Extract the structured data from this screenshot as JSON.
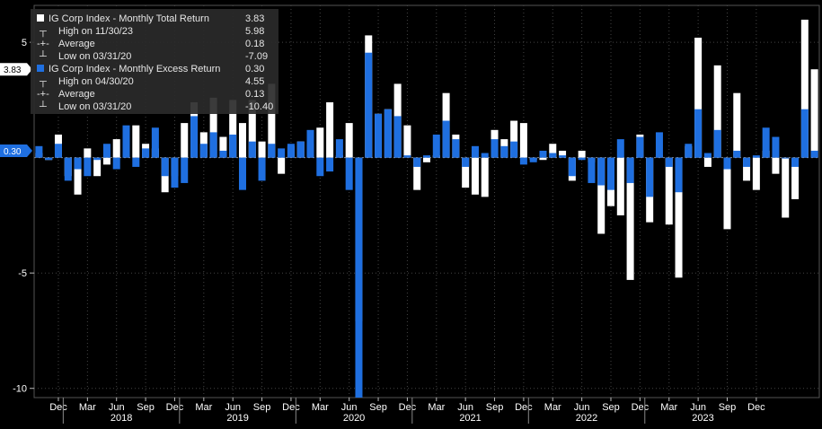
{
  "chart_data": {
    "type": "bar",
    "x_start": "2017-10",
    "x_end": "2023-12",
    "ylim": [
      -10.4,
      6.6
    ],
    "yticks": [
      5,
      -5,
      -10
    ],
    "y_tick_labels": [
      "5",
      "-5",
      "-10"
    ],
    "month_tick_labels": [
      "Dec",
      "Mar",
      "Jun",
      "Sep",
      "Dec",
      "Mar",
      "Jun",
      "Sep",
      "Dec",
      "Mar",
      "Jun",
      "Sep",
      "Dec",
      "Mar",
      "Jun",
      "Sep",
      "Dec",
      "Mar",
      "Jun",
      "Sep",
      "Dec",
      "Mar",
      "Jun",
      "Sep",
      "Dec"
    ],
    "year_labels": [
      "2018",
      "2019",
      "2020",
      "2021",
      "2022",
      "2023"
    ],
    "grid": true,
    "legend_position": "top-left",
    "colors": {
      "total": "#ffffff",
      "excess": "#1f6fe0",
      "background": "#000000",
      "grid": "#444444"
    },
    "series": [
      {
        "name": "IG Corp Index - Monthly Total Return",
        "color": "#ffffff",
        "last_value": "3.83",
        "stats": [
          {
            "label": "High on 11/30/23",
            "value": "5.98"
          },
          {
            "label": "Average",
            "value": "0.18"
          },
          {
            "label": "Low on 03/31/20",
            "value": "-7.09"
          }
        ],
        "values": [
          0.2,
          -0.1,
          1.0,
          -0.8,
          -1.6,
          0.4,
          -0.8,
          -0.3,
          0.8,
          0.1,
          1.4,
          0.6,
          0.4,
          -1.5,
          -0.8,
          1.5,
          2.4,
          1.1,
          2.6,
          0.9,
          2.5,
          1.5,
          2.5,
          0.7,
          3.2,
          -0.7,
          0.5,
          0.7,
          0.6,
          1.3,
          2.4,
          0.1,
          1.5,
          -7.09,
          5.3,
          1.9,
          2.1,
          3.2,
          1.4,
          -1.4,
          -0.2,
          0.1,
          2.8,
          1.0,
          -1.3,
          -1.6,
          -1.7,
          1.2,
          0.8,
          1.6,
          1.5,
          -0.1,
          -0.1,
          0.6,
          0.3,
          -1.0,
          0.3,
          -0.2,
          -3.3,
          -2.1,
          -2.5,
          -5.3,
          1.0,
          -2.8,
          0.1,
          -2.9,
          -5.2,
          0.5,
          5.2,
          -0.4,
          4.0,
          -3.1,
          2.8,
          -1.0,
          -1.4,
          0.3,
          -0.7,
          -2.6,
          -1.8,
          5.98,
          3.83
        ]
      },
      {
        "name": "IG Corp Index - Monthly Excess Return",
        "color": "#1f6fe0",
        "last_value": "0.30",
        "stats": [
          {
            "label": "High on 04/30/20",
            "value": "4.55"
          },
          {
            "label": "Average",
            "value": "0.13"
          },
          {
            "label": "Low on 03/31/20",
            "value": "-10.40"
          }
        ],
        "values": [
          0.5,
          -0.1,
          0.6,
          -1.0,
          -0.5,
          -0.8,
          -0.1,
          0.6,
          -0.5,
          1.4,
          -0.4,
          0.4,
          1.3,
          -0.8,
          -1.3,
          -1.1,
          1.8,
          0.6,
          1.1,
          0.3,
          1.0,
          -1.4,
          0.7,
          -1.0,
          0.6,
          0.4,
          0.6,
          0.7,
          1.2,
          -0.8,
          -0.6,
          0.8,
          -1.4,
          -10.4,
          4.55,
          1.9,
          2.1,
          1.8,
          0.1,
          -0.4,
          0.1,
          1.0,
          1.6,
          0.8,
          -0.4,
          0.5,
          0.2,
          0.8,
          0.5,
          0.7,
          -0.3,
          -0.2,
          0.3,
          0.2,
          0.1,
          -0.8,
          -0.1,
          -1.1,
          -1.2,
          -1.4,
          0.8,
          -1.1,
          0.9,
          -1.7,
          1.1,
          -0.4,
          -1.5,
          0.6,
          2.1,
          0.2,
          1.2,
          -0.5,
          0.3,
          -0.4,
          0.1,
          1.3,
          0.9,
          0.0,
          -0.4,
          2.1,
          0.3
        ]
      }
    ]
  }
}
